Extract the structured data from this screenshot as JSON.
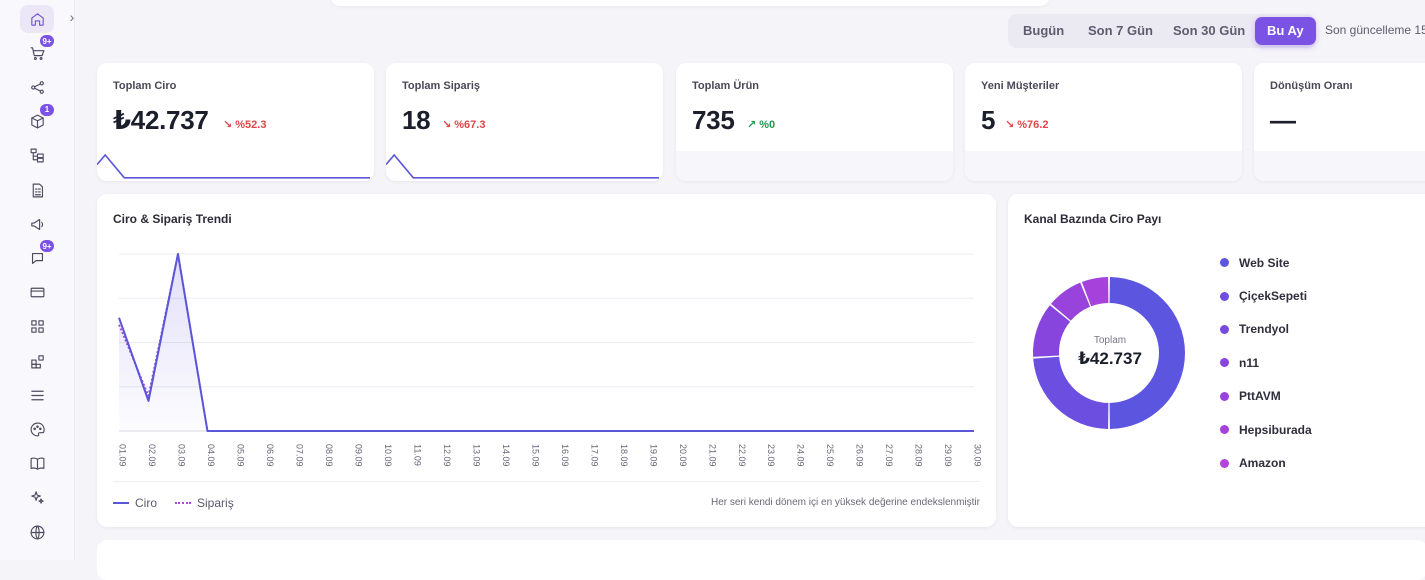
{
  "sidebar": {
    "collapse_icon": "chevron-right-icon",
    "items": [
      {
        "icon": "home-icon",
        "badge": "",
        "active": true
      },
      {
        "icon": "cart-icon",
        "badge": "9+"
      },
      {
        "icon": "share-icon",
        "badge": ""
      },
      {
        "icon": "box-icon",
        "badge": "1"
      },
      {
        "icon": "hierarchy-icon",
        "badge": ""
      },
      {
        "icon": "invoice-icon",
        "badge": ""
      },
      {
        "icon": "megaphone-icon",
        "badge": ""
      },
      {
        "icon": "chat-icon",
        "badge": "9+"
      },
      {
        "icon": "credit-card-icon",
        "badge": ""
      },
      {
        "icon": "grid-icon",
        "badge": ""
      },
      {
        "icon": "apps-add-icon",
        "badge": ""
      },
      {
        "icon": "menu-icon",
        "badge": ""
      },
      {
        "icon": "palette-icon",
        "badge": ""
      },
      {
        "icon": "book-icon",
        "badge": ""
      },
      {
        "icon": "sparkle-icon",
        "badge": ""
      },
      {
        "icon": "globe-icon",
        "badge": ""
      }
    ]
  },
  "periods": [
    "Bugün",
    "Son 7 Gün",
    "Son 30 Gün",
    "Bu Ay"
  ],
  "active_period": "Bu Ay",
  "last_update": "Son güncelleme 15",
  "stats": [
    {
      "label": "Toplam Ciro",
      "value": "₺42.737",
      "delta": "%52.3",
      "trend": "down",
      "arrow": "↘",
      "spark": [
        0.6,
        1,
        0.05,
        0.05,
        0.05,
        0.05,
        0.05,
        0.05,
        0.05,
        0.05
      ]
    },
    {
      "label": "Toplam Sipariş",
      "value": "18",
      "delta": "%67.3",
      "trend": "down",
      "arrow": "↘",
      "spark": [
        0.6,
        1,
        0.05,
        0.05,
        0.05,
        0.05,
        0.05,
        0.05,
        0.05,
        0.05
      ]
    },
    {
      "label": "Toplam Ürün",
      "value": "735",
      "delta": "%0",
      "trend": "up",
      "arrow": "↗"
    },
    {
      "label": "Yeni Müşteriler",
      "value": "5",
      "delta": "%76.2",
      "trend": "down",
      "arrow": "↘"
    },
    {
      "label": "Dönüşüm Oranı",
      "value": "—",
      "delta": "",
      "trend": "",
      "arrow": ""
    }
  ],
  "trend_card": {
    "title": "Ciro & Sipariş Trendi",
    "note": "Her seri kendi dönem içi en yüksek değerine endekslenmiştir",
    "legend": [
      "Ciro",
      "Sipariş"
    ]
  },
  "chart_data": [
    {
      "type": "line",
      "title": "Ciro & Sipariş Trendi",
      "x": [
        "01.09",
        "02.09",
        "03.09",
        "04.09",
        "05.09",
        "06.09",
        "07.09",
        "08.09",
        "09.09",
        "10.09",
        "11.09",
        "12.09",
        "13.09",
        "14.09",
        "15.09",
        "16.09",
        "17.09",
        "18.09",
        "19.09",
        "20.09",
        "21.09",
        "22.09",
        "23.09",
        "24.09",
        "25.09",
        "26.09",
        "27.09",
        "28.09",
        "29.09",
        "30.09"
      ],
      "ylim": [
        0,
        100
      ],
      "grid": true,
      "legend_position": "bottom-left",
      "series": [
        {
          "name": "Ciro",
          "color": "#5b55d8",
          "style": "solid",
          "values": [
            64,
            17,
            100,
            0,
            0,
            0,
            0,
            0,
            0,
            0,
            0,
            0,
            0,
            0,
            0,
            0,
            0,
            0,
            0,
            0,
            0,
            0,
            0,
            0,
            0,
            0,
            0,
            0,
            0,
            0
          ]
        },
        {
          "name": "Sipariş",
          "color": "#a04ed9",
          "style": "dotted",
          "values": [
            60,
            20,
            100,
            0,
            0,
            0,
            0,
            0,
            0,
            0,
            0,
            0,
            0,
            0,
            0,
            0,
            0,
            0,
            0,
            0,
            0,
            0,
            0,
            0,
            0,
            0,
            0,
            0,
            0,
            0
          ]
        }
      ]
    },
    {
      "type": "pie",
      "title": "Kanal Bazında Ciro Payı",
      "center_label": "Toplam",
      "center_value": "₺42.737",
      "categories": [
        "Web Site",
        "ÇiçekSepeti",
        "Trendyol",
        "n11",
        "PttAVM",
        "Hepsiburada",
        "Amazon"
      ],
      "values": [
        50,
        24,
        0,
        12,
        8,
        6,
        0
      ],
      "colors": [
        "#5b55e0",
        "#6c4ee0",
        "#7649df",
        "#8745dd",
        "#9843dc",
        "#a641db",
        "#b542da"
      ]
    }
  ]
}
